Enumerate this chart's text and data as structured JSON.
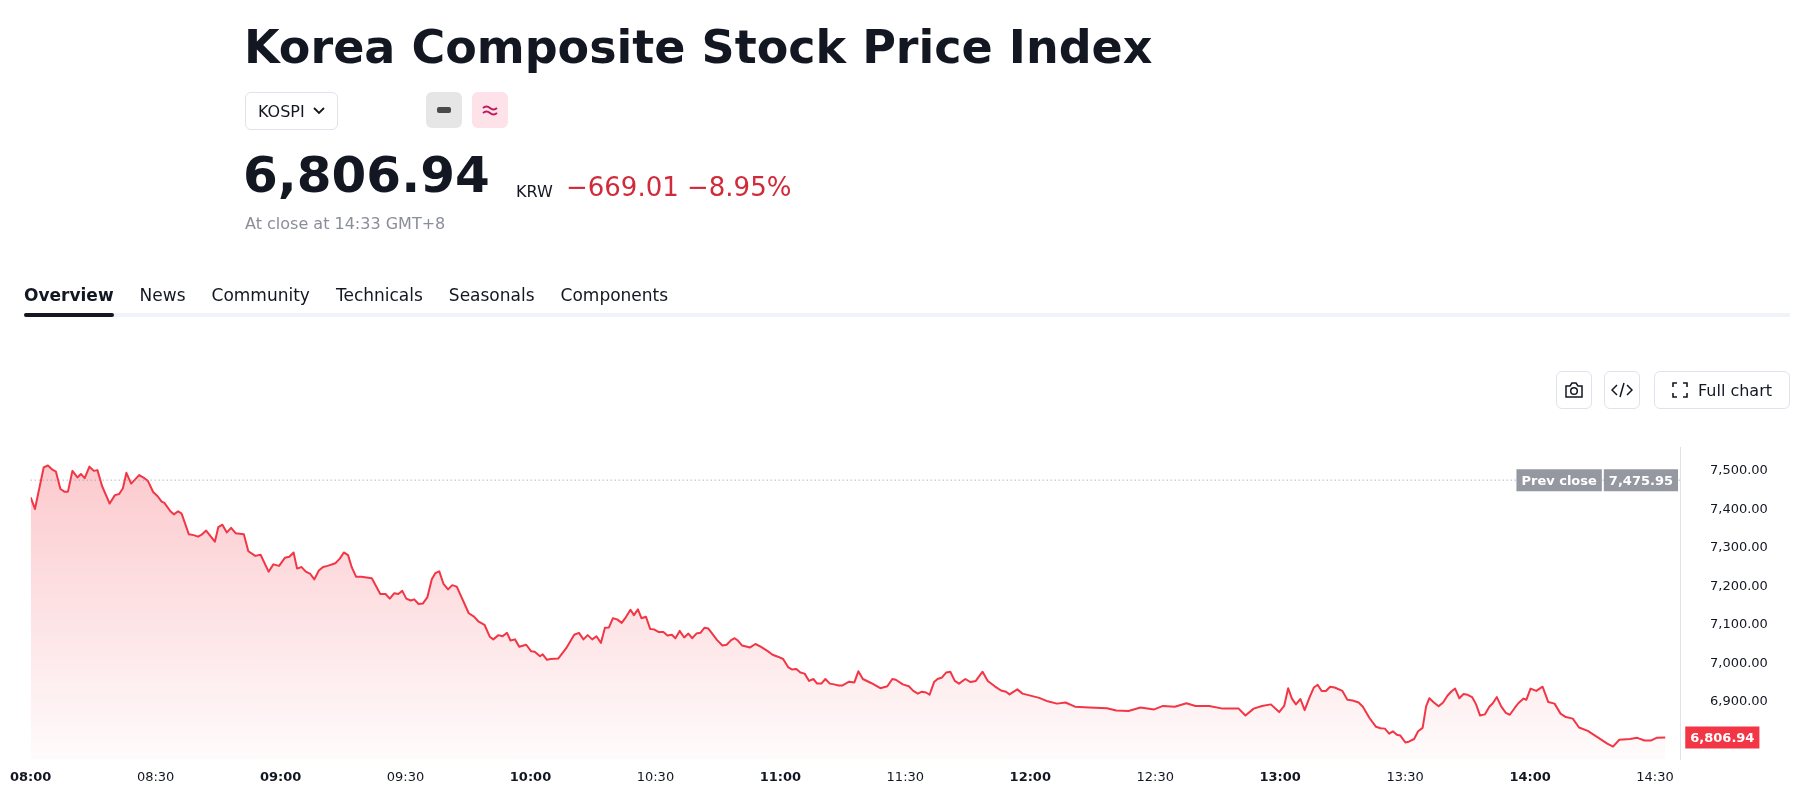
{
  "chart_data": {
    "type": "area",
    "title": "Korea Composite Stock Price Index",
    "annotations": [
      "KOSPI",
      "6,806.94",
      "KRW",
      "−669.01 −8.95%",
      "At close at 14:33 GMT+8",
      "Overview",
      "News",
      "Community",
      "Technicals",
      "Seasonals",
      "Components",
      "Full chart",
      {
        "text": "6,806.94",
        "x": 14.541,
        "y": 6806.94
      },
      {
        "text": "7,475.95",
        "y": 7475.95
      }
    ],
    "xlim": [
      8,
      14.6
    ],
    "xticks": [
      {
        "value": 8,
        "label": "08:00"
      },
      {
        "value": 8.5,
        "label": "08:30"
      },
      {
        "value": 9,
        "label": "09:00"
      },
      {
        "value": 9.5,
        "label": "09:30"
      },
      {
        "value": 10,
        "label": "10:00"
      },
      {
        "value": 10.5,
        "label": "10:30"
      },
      {
        "value": 11,
        "label": "11:00"
      },
      {
        "value": 11.5,
        "label": "11:30"
      },
      {
        "value": 12,
        "label": "12:00"
      },
      {
        "value": 12.5,
        "label": "12:30"
      },
      {
        "value": 13,
        "label": "13:00"
      },
      {
        "value": 13.5,
        "label": "13:30"
      },
      {
        "value": 14,
        "label": "14:00"
      },
      {
        "value": 14.5,
        "label": "14:30"
      }
    ],
    "ylim": [
      6750,
      7560
    ],
    "yticks": [
      {
        "value": 6900,
        "label": "6,900.00"
      },
      {
        "value": 7000,
        "label": "7,000.00"
      },
      {
        "value": 7100,
        "label": "7,100.00"
      },
      {
        "value": 7200,
        "label": "7,200.00"
      },
      {
        "value": 7300,
        "label": "7,300.00"
      },
      {
        "value": 7400,
        "label": "7,400.00"
      },
      {
        "value": 7500,
        "label": "7,500.00"
      }
    ],
    "ref_lines": [
      {
        "axis": "y",
        "value": 7475.95,
        "label": "Prev close",
        "color": "#9598a1",
        "line_style": "dotted"
      }
    ],
    "series": [
      {
        "color": "#f23645",
        "x": [
          8.0,
          8.017,
          8.052,
          8.069,
          8.087,
          8.101,
          8.119,
          8.135,
          8.149,
          8.167,
          8.187,
          8.201,
          8.216,
          8.235,
          8.253,
          8.267,
          8.286,
          8.316,
          8.337,
          8.354,
          8.369,
          8.383,
          8.402,
          8.434,
          8.455,
          8.469,
          8.49,
          8.508,
          8.524,
          8.535,
          8.559,
          8.573,
          8.59,
          8.604,
          8.633,
          8.652,
          8.67,
          8.684,
          8.702,
          8.737,
          8.751,
          8.767,
          8.785,
          8.802,
          8.82,
          8.853,
          8.871,
          8.899,
          8.92,
          8.952,
          8.971,
          8.994,
          9.017,
          9.035,
          9.052,
          9.066,
          9.084,
          9.101,
          9.119,
          9.135,
          9.153,
          9.17,
          9.188,
          9.219,
          9.237,
          9.253,
          9.27,
          9.285,
          9.302,
          9.323,
          9.365,
          9.399,
          9.42,
          9.437,
          9.455,
          9.471,
          9.487,
          9.503,
          9.521,
          9.535,
          9.552,
          9.569,
          9.587,
          9.605,
          9.619,
          9.635,
          9.652,
          9.67,
          9.687,
          9.705,
          9.753,
          9.774,
          9.791,
          9.816,
          9.837,
          9.851,
          9.872,
          9.888,
          9.906,
          9.92,
          9.938,
          9.955,
          9.983,
          10.003,
          10.017,
          10.038,
          10.049,
          10.066,
          10.08,
          10.111,
          10.143,
          10.175,
          10.194,
          10.212,
          10.229,
          10.247,
          10.264,
          10.282,
          10.298,
          10.314,
          10.33,
          10.347,
          10.365,
          10.379,
          10.4,
          10.414,
          10.43,
          10.444,
          10.462,
          10.479,
          10.494,
          10.514,
          10.532,
          10.548,
          10.566,
          10.58,
          10.597,
          10.615,
          10.632,
          10.647,
          10.664,
          10.68,
          10.696,
          10.712,
          10.747,
          10.768,
          10.785,
          10.803,
          10.817,
          10.83,
          10.847,
          10.879,
          10.9,
          10.921,
          10.948,
          10.969,
          10.99,
          11.011,
          11.032,
          11.046,
          11.064,
          11.08,
          11.097,
          11.115,
          11.132,
          11.147,
          11.164,
          11.18,
          11.198,
          11.215,
          11.233,
          11.247,
          11.275,
          11.296,
          11.312,
          11.33,
          11.365,
          11.4,
          11.428,
          11.448,
          11.462,
          11.49,
          11.514,
          11.532,
          11.55,
          11.566,
          11.583,
          11.597,
          11.615,
          11.629,
          11.647,
          11.664,
          11.68,
          11.698,
          11.715,
          11.74,
          11.761,
          11.782,
          11.809,
          11.83,
          11.858,
          11.883,
          11.903,
          11.917,
          11.948,
          11.969,
          12.036,
          12.07,
          12.107,
          12.141,
          12.179,
          12.236,
          12.307,
          12.344,
          12.393,
          12.441,
          12.496,
          12.531,
          12.578,
          12.625,
          12.661,
          12.716,
          12.77,
          12.834,
          12.861,
          12.894,
          12.927,
          12.963,
          12.996,
          13.016,
          13.032,
          13.047,
          13.063,
          13.081,
          13.098,
          13.118,
          13.135,
          13.15,
          13.166,
          13.183,
          13.2,
          13.218,
          13.249,
          13.269,
          13.29,
          13.314,
          13.331,
          13.358,
          13.383,
          13.402,
          13.419,
          13.436,
          13.451,
          13.467,
          13.481,
          13.501,
          13.515,
          13.536,
          13.552,
          13.57,
          13.584,
          13.597,
          13.615,
          13.634,
          13.652,
          13.67,
          13.686,
          13.7,
          13.717,
          13.734,
          13.75,
          13.768,
          13.784,
          13.8,
          13.819,
          13.837,
          13.851,
          13.867,
          13.885,
          13.903,
          13.919,
          13.94,
          13.953,
          13.974,
          13.985,
          14.002,
          14.025,
          14.05,
          14.073,
          14.098,
          14.122,
          14.143,
          14.171,
          14.196,
          14.231,
          14.274,
          14.309,
          14.332,
          14.357,
          14.4,
          14.429,
          14.458,
          14.483,
          14.506,
          14.541
        ],
        "values": [
          7431,
          7401,
          7509,
          7514,
          7503,
          7498,
          7453,
          7446,
          7446,
          7500,
          7483,
          7492,
          7481,
          7511,
          7500,
          7502,
          7460,
          7415,
          7437,
          7440,
          7455,
          7495,
          7467,
          7489,
          7481,
          7474,
          7445,
          7434,
          7420,
          7417,
          7395,
          7387,
          7395,
          7389,
          7335,
          7333,
          7329,
          7334,
          7345,
          7316,
          7354,
          7360,
          7340,
          7352,
          7338,
          7335,
          7291,
          7279,
          7282,
          7238,
          7257,
          7253,
          7274,
          7277,
          7288,
          7246,
          7250,
          7238,
          7232,
          7218,
          7241,
          7250,
          7253,
          7260,
          7272,
          7288,
          7281,
          7249,
          7225,
          7225,
          7221,
          7180,
          7180,
          7168,
          7182,
          7180,
          7188,
          7168,
          7163,
          7166,
          7154,
          7155,
          7171,
          7218,
          7234,
          7239,
          7206,
          7192,
          7203,
          7199,
          7130,
          7121,
          7109,
          7100,
          7069,
          7062,
          7073,
          7070,
          7079,
          7059,
          7062,
          7043,
          7048,
          7031,
          7030,
          7018,
          7023,
          7009,
          7011,
          7012,
          7039,
          7074,
          7079,
          7062,
          7073,
          7062,
          7070,
          7053,
          7092,
          7093,
          7117,
          7114,
          7105,
          7117,
          7139,
          7125,
          7140,
          7117,
          7121,
          7089,
          7088,
          7081,
          7081,
          7072,
          7074,
          7065,
          7084,
          7067,
          7077,
          7065,
          7077,
          7079,
          7092,
          7090,
          7060,
          7046,
          7048,
          7060,
          7065,
          7059,
          7046,
          7041,
          7050,
          7043,
          7032,
          7022,
          7017,
          7011,
          6989,
          6984,
          6985,
          6976,
          6973,
          6954,
          6959,
          6947,
          6947,
          6959,
          6947,
          6945,
          6942,
          6942,
          6952,
          6950,
          6979,
          6959,
          6948,
          6935,
          6940,
          6959,
          6957,
          6945,
          6940,
          6928,
          6921,
          6926,
          6924,
          6918,
          6951,
          6959,
          6963,
          6976,
          6978,
          6954,
          6947,
          6959,
          6951,
          6954,
          6978,
          6954,
          6940,
          6929,
          6926,
          6919,
          6932,
          6921,
          6910,
          6901,
          6895,
          6898,
          6887,
          6885,
          6883,
          6877,
          6876,
          6885,
          6880,
          6889,
          6887,
          6896,
          6889,
          6889,
          6882,
          6882,
          6864,
          6882,
          6889,
          6893,
          6873,
          6889,
          6935,
          6908,
          6893,
          6907,
          6878,
          6912,
          6937,
          6944,
          6928,
          6928,
          6939,
          6937,
          6928,
          6905,
          6903,
          6898,
          6887,
          6857,
          6835,
          6831,
          6830,
          6817,
          6823,
          6814,
          6812,
          6794,
          6796,
          6803,
          6823,
          6832,
          6888,
          6909,
          6898,
          6888,
          6898,
          6916,
          6927,
          6934,
          6909,
          6920,
          6918,
          6912,
          6893,
          6864,
          6867,
          6887,
          6896,
          6912,
          6887,
          6871,
          6866,
          6885,
          6896,
          6908,
          6905,
          6934,
          6928,
          6939,
          6899,
          6895,
          6869,
          6860,
          6856,
          6833,
          6824,
          6806,
          6791,
          6783,
          6801,
          6803,
          6806,
          6799,
          6799,
          6806,
          6807
        ]
      }
    ]
  }
}
